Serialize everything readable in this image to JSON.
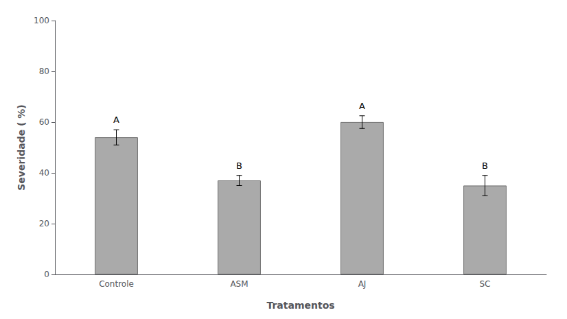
{
  "chart_data": {
    "type": "bar",
    "categories": [
      "Controle",
      "ASM",
      "AJ",
      "SC"
    ],
    "values": [
      54.0,
      37.0,
      60.0,
      35.0
    ],
    "errors": [
      3.0,
      2.0,
      2.5,
      4.0
    ],
    "annotations": [
      "A",
      "B",
      "A",
      "B"
    ],
    "color": "#aaaaaa",
    "xlabel": "Tratamentos",
    "ylabel": "Severidade ( %)",
    "ylim": [
      0,
      100
    ],
    "yticks": [
      0,
      20,
      40,
      60,
      80,
      100
    ],
    "grid": false
  }
}
